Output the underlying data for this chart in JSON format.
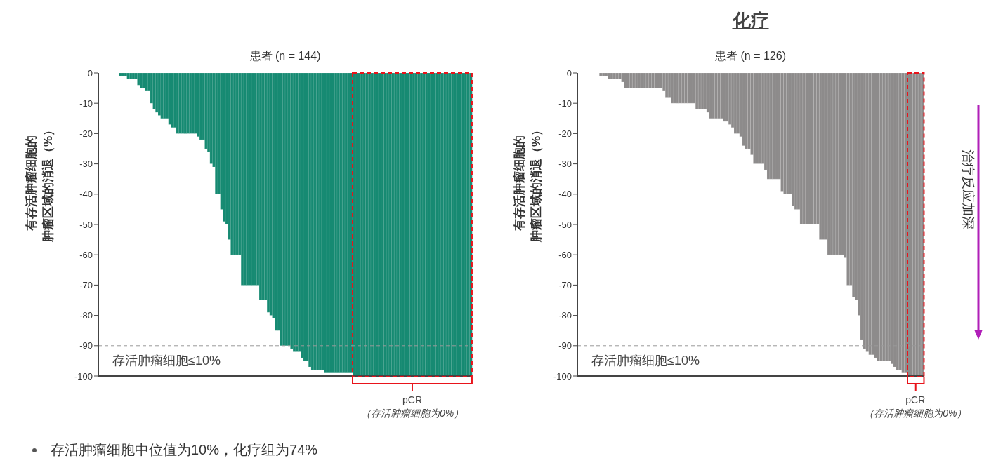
{
  "chart_data": [
    {
      "type": "bar",
      "xlabel": "患者 (n = 144)",
      "ylabel": "有存活肿瘤细胞的肿瘤区域的消退（%）",
      "color": "#168a72",
      "tick_labels": "y",
      "ylim": [
        -100,
        0
      ],
      "yticks": [
        0,
        -10,
        -20,
        -30,
        -40,
        -50,
        -60,
        -70,
        -80,
        -90,
        -100
      ],
      "categories": [
        null,
        null,
        null,
        null,
        null,
        null,
        null,
        null,
        null,
        null,
        null,
        null,
        null,
        null,
        null,
        null,
        null,
        null,
        null,
        null,
        null,
        null,
        null,
        null,
        null,
        null,
        null,
        null,
        null,
        null,
        null,
        null,
        null,
        null,
        null,
        null,
        null,
        null,
        null,
        null,
        null,
        null,
        null,
        null,
        null,
        null,
        null,
        null,
        null,
        null,
        null,
        null,
        null,
        null,
        null,
        null,
        null,
        null,
        null,
        null,
        null,
        null,
        null,
        null,
        null,
        null,
        null,
        null,
        null,
        null,
        null,
        null,
        null,
        null,
        null,
        null,
        null,
        null,
        null,
        null,
        null,
        null,
        null,
        null,
        null,
        null,
        null,
        null,
        null,
        null,
        null,
        null,
        null,
        null,
        null,
        null,
        null,
        null,
        null,
        null,
        null,
        null,
        null,
        null,
        null,
        null,
        null,
        null,
        null,
        null,
        null,
        null,
        null,
        null,
        null,
        null,
        null,
        null,
        null,
        null,
        null,
        null,
        null,
        null,
        null,
        null,
        null,
        null,
        null,
        null,
        null,
        null,
        null,
        null,
        null,
        null,
        null,
        null,
        null,
        null,
        null,
        null,
        null,
        null
      ],
      "values": [
        0,
        0,
        0,
        0,
        0,
        0,
        0,
        0,
        -1,
        -1,
        -1,
        -2,
        -2,
        -2,
        -2,
        -4,
        -5,
        -5,
        -6,
        -6,
        -10,
        -12,
        -13,
        -14,
        -15,
        -15,
        -15,
        -17,
        -18,
        -18,
        -20,
        -20,
        -20,
        -20,
        -20,
        -20,
        -20,
        -20,
        -21,
        -22,
        -22,
        -25,
        -26,
        -30,
        -31,
        -40,
        -40,
        -45,
        -49,
        -50,
        -55,
        -60,
        -60,
        -60,
        -60,
        -70,
        -70,
        -70,
        -70,
        -70,
        -70,
        -70,
        -75,
        -75,
        -75,
        -79,
        -80,
        -81,
        -85,
        -85,
        -90,
        -90,
        -90,
        -90,
        -91,
        -92,
        -92,
        -92,
        -94,
        -95,
        -95,
        -97,
        -98,
        -98,
        -98,
        -98,
        -98,
        -99,
        -99,
        -99,
        -99,
        -99,
        -99,
        -99,
        -99,
        -99,
        -99,
        -99,
        -100,
        -100,
        -100,
        -100,
        -100,
        -100,
        -100,
        -100,
        -100,
        -100,
        -100,
        -100,
        -100,
        -100,
        -100,
        -100,
        -100,
        -100,
        -100,
        -100,
        -100,
        -100,
        -100,
        -100,
        -100,
        -100,
        -100,
        -100,
        -100,
        -100,
        -100,
        -100,
        -100,
        -100,
        -100,
        -100,
        -100,
        -100,
        -100,
        -100,
        -100,
        -100,
        -100,
        -100,
        -100,
        -100
      ],
      "ref_lines": [
        {
          "axis": "y",
          "value": -90,
          "label": "存活肿瘤细胞≤10%",
          "color": "#999999",
          "line_style": "dashed"
        }
      ],
      "annotations": [
        "pCR",
        "（存活肿瘤细胞为0%）",
        "存活肿瘤细胞中位值为10%，化疗组为74%"
      ]
    },
    {
      "type": "bar",
      "title": "化疗",
      "xlabel": "患者 (n = 126)",
      "ylabel": "有存活肿瘤细胞的肿瘤区域的消退（%）",
      "color": "#8d8b8b",
      "tick_labels": "y",
      "ylim": [
        -100,
        0
      ],
      "yticks": [
        0,
        -10,
        -20,
        -30,
        -40,
        -50,
        -60,
        -70,
        -80,
        -90,
        -100
      ],
      "categories": [
        null,
        null,
        null,
        null,
        null,
        null,
        null,
        null,
        null,
        null,
        null,
        null,
        null,
        null,
        null,
        null,
        null,
        null,
        null,
        null,
        null,
        null,
        null,
        null,
        null,
        null,
        null,
        null,
        null,
        null,
        null,
        null,
        null,
        null,
        null,
        null,
        null,
        null,
        null,
        null,
        null,
        null,
        null,
        null,
        null,
        null,
        null,
        null,
        null,
        null,
        null,
        null,
        null,
        null,
        null,
        null,
        null,
        null,
        null,
        null,
        null,
        null,
        null,
        null,
        null,
        null,
        null,
        null,
        null,
        null,
        null,
        null,
        null,
        null,
        null,
        null,
        null,
        null,
        null,
        null,
        null,
        null,
        null,
        null,
        null,
        null,
        null,
        null,
        null,
        null,
        null,
        null,
        null,
        null,
        null,
        null,
        null,
        null,
        null,
        null,
        null,
        null,
        null,
        null,
        null,
        null,
        null,
        null,
        null,
        null,
        null,
        null,
        null,
        null,
        null,
        null,
        null,
        null,
        null,
        null,
        null,
        null,
        null,
        null,
        null,
        null
      ],
      "values": [
        0,
        0,
        0,
        0,
        0,
        0,
        0,
        0,
        -1,
        -1,
        -1,
        -2,
        -2,
        -2,
        -2,
        -2,
        -3,
        -5,
        -5,
        -5,
        -5,
        -5,
        -5,
        -5,
        -5,
        -5,
        -5,
        -5,
        -5,
        -5,
        -5,
        -6,
        -8,
        -8,
        -10,
        -10,
        -10,
        -10,
        -10,
        -10,
        -10,
        -10,
        -10,
        -12,
        -12,
        -12,
        -12,
        -13,
        -15,
        -15,
        -15,
        -15,
        -15,
        -16,
        -16,
        -17,
        -18,
        -20,
        -20,
        -21,
        -24,
        -25,
        -25,
        -27,
        -30,
        -30,
        -30,
        -30,
        -32,
        -35,
        -35,
        -35,
        -35,
        -35,
        -39,
        -40,
        -40,
        -40,
        -44,
        -45,
        -45,
        -50,
        -50,
        -50,
        -50,
        -50,
        -50,
        -50,
        -55,
        -55,
        -55,
        -60,
        -60,
        -60,
        -60,
        -60,
        -60,
        -61,
        -70,
        -70,
        -74,
        -75,
        -80,
        -88,
        -91,
        -92,
        -93,
        -93,
        -94,
        -95,
        -95,
        -95,
        -95,
        -95,
        -96,
        -97,
        -98,
        -98,
        -99,
        -99,
        -100,
        -100,
        -100,
        -100,
        -100,
        -100
      ],
      "ref_lines": [
        {
          "axis": "y",
          "value": -90,
          "label": "存活肿瘤细胞≤10%",
          "color": "#999999",
          "line_style": "dashed"
        }
      ],
      "annotations": [
        "pCR",
        "（存活肿瘤细胞为0%）",
        "治疗反应加深"
      ]
    }
  ]
}
